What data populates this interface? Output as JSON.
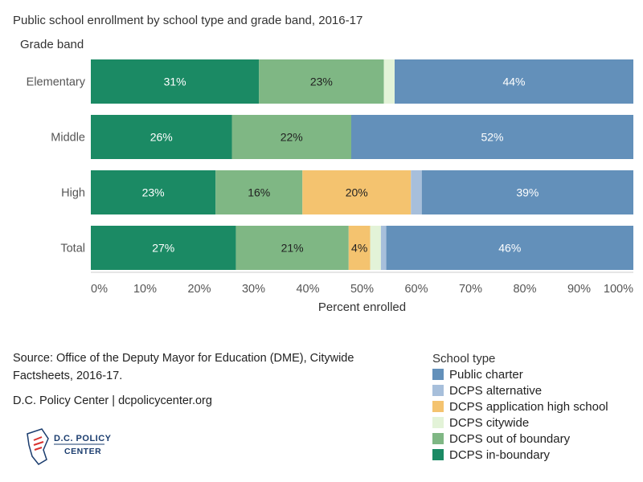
{
  "chart_data": {
    "type": "bar",
    "orientation": "horizontal",
    "stacked": true,
    "title": "Public school enrollment by school type and grade band, 2016-17",
    "ylabel": "Grade band",
    "xlabel": "Percent enrolled",
    "categories": [
      "Elementary",
      "Middle",
      "High",
      "Total"
    ],
    "xlim": [
      0,
      100
    ],
    "xticks": [
      "0%",
      "10%",
      "20%",
      "30%",
      "40%",
      "50%",
      "60%",
      "70%",
      "80%",
      "90%",
      "100%"
    ],
    "series": [
      {
        "name": "DCPS in-boundary",
        "color": "#1b8a64",
        "values": [
          31,
          26,
          23,
          27
        ],
        "labels": [
          "31%",
          "26%",
          "23%",
          "27%"
        ],
        "label_color": "#ffffff"
      },
      {
        "name": "DCPS out of boundary",
        "color": "#7fb784",
        "values": [
          23,
          22,
          16,
          21
        ],
        "labels": [
          "23%",
          "22%",
          "16%",
          "21%"
        ],
        "label_color": "#222222"
      },
      {
        "name": "DCPS application high school",
        "color": "#f4c36f",
        "values": [
          0,
          0,
          20,
          4
        ],
        "labels": [
          "",
          "",
          "20%",
          "4%"
        ],
        "label_color": "#222222"
      },
      {
        "name": "DCPS citywide",
        "color": "#e3f3d8",
        "values": [
          2,
          0,
          0,
          2
        ],
        "labels": [
          "",
          "",
          "",
          ""
        ],
        "label_color": "#222222"
      },
      {
        "name": "DCPS alternative",
        "color": "#a7bfdb",
        "values": [
          0,
          0,
          2,
          1
        ],
        "labels": [
          "",
          "",
          "",
          ""
        ],
        "label_color": "#222222"
      },
      {
        "name": "Public charter",
        "color": "#6390ba",
        "values": [
          44,
          52,
          39,
          46
        ],
        "labels": [
          "44%",
          "52%",
          "39%",
          "46%"
        ],
        "label_color": "#ffffff"
      }
    ],
    "legend": {
      "title": "School type",
      "placement": "bottom-right",
      "order": [
        "Public charter",
        "DCPS alternative",
        "DCPS application high school",
        "DCPS citywide",
        "DCPS out of boundary",
        "DCPS in-boundary"
      ]
    }
  },
  "source": "Source: Office of the Deputy Mayor for Education (DME), Citywide Factsheets, 2016-17.",
  "credit": "D.C. Policy Center | dcpolicycenter.org",
  "logo": {
    "line1": "D.C. POLICY",
    "line2": "CENTER"
  }
}
